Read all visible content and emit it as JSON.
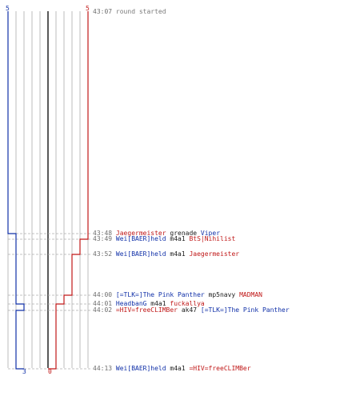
{
  "colors": {
    "blue_team": "#1030a8",
    "red_team": "#c01818",
    "grid": "#bdbdbd",
    "zero_line": "#303030",
    "dashed": "#b0b0b0",
    "timestamp": "#6e6e6e"
  },
  "scores": {
    "blue_start": "5",
    "red_start": "5",
    "blue_end": "3",
    "red_end": "0"
  },
  "events": [
    {
      "time": "43:07",
      "parts": [
        {
          "text": "round started",
          "team": "muted"
        }
      ]
    },
    {
      "time": "43:48",
      "parts": [
        {
          "text": "Jaegermeister",
          "team": "red"
        },
        {
          "text": "grenade",
          "team": "plain"
        },
        {
          "text": "Viper",
          "team": "blue"
        }
      ]
    },
    {
      "time": "43:49",
      "parts": [
        {
          "text": "Wei[BAER]held",
          "team": "blue"
        },
        {
          "text": "m4a1",
          "team": "plain"
        },
        {
          "text": "BtS|Nihilist",
          "team": "red"
        }
      ]
    },
    {
      "time": "43:52",
      "parts": [
        {
          "text": "Wei[BAER]held",
          "team": "blue"
        },
        {
          "text": "m4a1",
          "team": "plain"
        },
        {
          "text": "Jaegermeister",
          "team": "red"
        }
      ]
    },
    {
      "time": "44:00",
      "parts": [
        {
          "text": "[=TLK=]The Pink Panther",
          "team": "blue"
        },
        {
          "text": "mp5navy",
          "team": "plain"
        },
        {
          "text": "MADMAN",
          "team": "red"
        }
      ]
    },
    {
      "time": "44:01",
      "parts": [
        {
          "text": "HeadbanG",
          "team": "blue"
        },
        {
          "text": "m4a1",
          "team": "plain"
        },
        {
          "text": "fuckallya",
          "team": "red"
        }
      ]
    },
    {
      "time": "44:02",
      "parts": [
        {
          "text": "=HIV=freeCLIMBer",
          "team": "red"
        },
        {
          "text": "ak47",
          "team": "plain"
        },
        {
          "text": "[=TLK=]The Pink Panther",
          "team": "blue"
        }
      ]
    },
    {
      "time": "44:13",
      "parts": [
        {
          "text": "Wei[BAER]held",
          "team": "blue"
        },
        {
          "text": "m4a1",
          "team": "plain"
        },
        {
          "text": "=HIV=freeCLIMBer",
          "team": "red"
        }
      ]
    }
  ]
}
